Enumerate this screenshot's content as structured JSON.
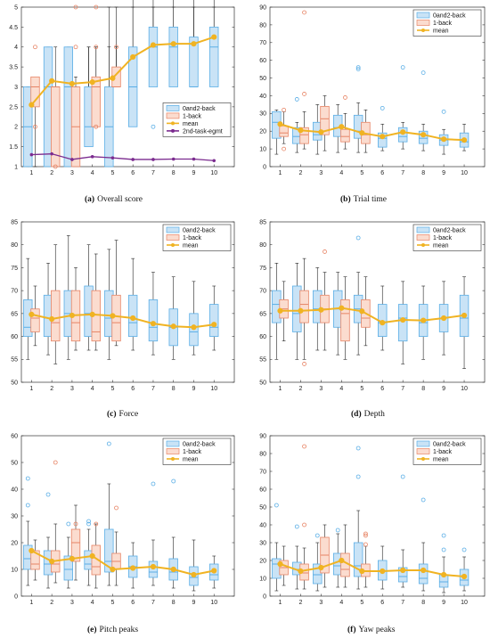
{
  "colors": {
    "box0": "#c9e3f6",
    "box0_edge": "#5aaee6",
    "box1": "#fbdccf",
    "box1_edge": "#e78465",
    "mean": "#f0b322",
    "second": "#7b2b8f",
    "whisker": "#222222"
  },
  "legend_entries": {
    "box0": "0and2-back",
    "box1": "1-back",
    "mean": "mean",
    "second": "2nd-task-egmt"
  },
  "chart_data": [
    {
      "type": "box",
      "caption_tag": "(a)",
      "caption_text": "Overall score",
      "ylim": [
        1,
        5
      ],
      "yticks": [
        "1",
        "1.5",
        "2",
        "2.5",
        "3",
        "3.5",
        "4",
        "4.5",
        "5"
      ],
      "categories": [
        "1",
        "2",
        "3",
        "4",
        "5",
        "6",
        "7",
        "8",
        "9",
        "10"
      ],
      "legend_position": "center-right",
      "boxes0": [
        [
          1,
          1,
          2,
          3,
          3
        ],
        [
          2,
          1,
          3,
          4,
          4
        ],
        [
          3,
          1,
          3,
          4,
          4
        ],
        [
          4,
          1.5,
          2,
          3,
          4
        ],
        [
          5,
          1,
          2,
          3,
          4
        ],
        [
          6,
          2,
          3,
          4,
          5
        ],
        [
          7,
          3,
          4,
          4.5,
          5
        ],
        [
          8,
          3,
          4,
          4.5,
          5
        ],
        [
          9,
          3,
          3,
          4.25,
          5
        ],
        [
          10,
          3,
          4,
          4.5,
          5
        ]
      ],
      "boxes1": [
        [
          1,
          2.5,
          3,
          3.25,
          3.25
        ],
        [
          2,
          1,
          3,
          3,
          4
        ],
        [
          3,
          1,
          2,
          3,
          3.25
        ],
        [
          4,
          2,
          3,
          3.25,
          4
        ],
        [
          5,
          3,
          3,
          3.5,
          4
        ]
      ],
      "outliers0": [
        [
          7,
          2
        ]
      ],
      "outliers1": [
        [
          1,
          4
        ],
        [
          1,
          2
        ],
        [
          2,
          1
        ],
        [
          3,
          5
        ],
        [
          3,
          4
        ],
        [
          4,
          5
        ],
        [
          4,
          4
        ],
        [
          4,
          2
        ],
        [
          5,
          4
        ]
      ],
      "mean": [
        2.55,
        3.15,
        3.08,
        3.12,
        3.22,
        3.75,
        4.05,
        4.08,
        4.08,
        4.25
      ],
      "second": [
        1.3,
        1.32,
        1.18,
        1.25,
        1.22,
        1.18,
        1.18,
        1.19,
        1.19,
        1.15
      ]
    },
    {
      "type": "box",
      "caption_tag": "(b)",
      "caption_text": "Trial time",
      "ylim": [
        0,
        90
      ],
      "yticks": [
        "0",
        "10",
        "20",
        "30",
        "40",
        "50",
        "60",
        "70",
        "80",
        "90"
      ],
      "categories": [
        "1",
        "2",
        "3",
        "4",
        "5",
        "6",
        "7",
        "8",
        "9",
        "10"
      ],
      "legend_position": "top-right",
      "boxes0": [
        [
          7,
          16,
          25,
          31,
          32
        ],
        [
          8,
          13,
          17,
          22,
          25
        ],
        [
          7,
          15,
          18,
          25,
          35
        ],
        [
          8,
          17,
          22,
          29,
          35
        ],
        [
          8,
          16,
          20,
          29,
          36
        ],
        [
          9,
          11,
          16,
          19,
          24
        ],
        [
          10,
          14,
          17,
          22,
          25
        ],
        [
          9,
          13,
          16,
          20,
          24
        ],
        [
          7,
          12,
          15,
          18,
          21
        ],
        [
          9,
          11,
          14,
          19,
          24
        ]
      ],
      "boxes1": [
        [
          13,
          17,
          19,
          23,
          31
        ],
        [
          10,
          13,
          18,
          22,
          31
        ],
        [
          9,
          18,
          27,
          34,
          40
        ],
        [
          10,
          14,
          17,
          21,
          30
        ],
        [
          8,
          13,
          18,
          25,
          32
        ]
      ],
      "outliers0": [
        [
          2,
          38
        ],
        [
          5,
          56
        ],
        [
          5,
          55
        ],
        [
          6,
          33
        ],
        [
          7,
          56
        ],
        [
          8,
          53
        ],
        [
          9,
          31
        ]
      ],
      "outliers1": [
        [
          1,
          32
        ],
        [
          1,
          10
        ],
        [
          2,
          87
        ],
        [
          2,
          41
        ],
        [
          4,
          39
        ]
      ],
      "mean": [
        24,
        20.5,
        19.5,
        22.5,
        19,
        17,
        19.5,
        18,
        15.5,
        15
      ]
    },
    {
      "type": "box",
      "caption_tag": "(c)",
      "caption_text": "Force",
      "ylim": [
        50,
        85
      ],
      "yticks": [
        "50",
        "55",
        "60",
        "65",
        "70",
        "75",
        "80",
        "85"
      ],
      "categories": [
        "1",
        "2",
        "3",
        "4",
        "5",
        "6",
        "7",
        "8",
        "9",
        "10"
      ],
      "legend_position": "top-right",
      "boxes0": [
        [
          55,
          60,
          62,
          68,
          77
        ],
        [
          56,
          60,
          64,
          69,
          76
        ],
        [
          55,
          60,
          65,
          70,
          82
        ],
        [
          57,
          60,
          65,
          71,
          80
        ],
        [
          55,
          60,
          64,
          70,
          79
        ],
        [
          57,
          60,
          63,
          69,
          77
        ],
        [
          56,
          59,
          62,
          68,
          74
        ],
        [
          55,
          58,
          62,
          66,
          73
        ],
        [
          56,
          58,
          61,
          65,
          72
        ],
        [
          57,
          60,
          62,
          67,
          71
        ]
      ],
      "boxes1": [
        [
          58,
          61,
          64,
          66,
          71
        ],
        [
          54,
          59,
          63,
          70,
          80
        ],
        [
          57,
          59,
          63,
          70,
          75
        ],
        [
          57,
          59,
          61,
          70,
          78
        ],
        [
          58,
          59,
          63,
          69,
          81
        ]
      ],
      "outliers0": [],
      "outliers1": [],
      "mean": [
        64.8,
        63.8,
        64.6,
        64.8,
        64.5,
        64,
        62.8,
        62.2,
        62,
        62.6
      ]
    },
    {
      "type": "box",
      "caption_tag": "(d)",
      "caption_text": "Depth",
      "ylim": [
        50,
        85
      ],
      "yticks": [
        "50",
        "55",
        "60",
        "65",
        "70",
        "75",
        "80",
        "85"
      ],
      "categories": [
        "1",
        "2",
        "3",
        "4",
        "5",
        "6",
        "7",
        "8",
        "9",
        "10"
      ],
      "legend_position": "top-right",
      "boxes0": [
        [
          55,
          63,
          67,
          70,
          76
        ],
        [
          55,
          61,
          65,
          71,
          76
        ],
        [
          57,
          63,
          66,
          70,
          75
        ],
        [
          56,
          62,
          66,
          70,
          74
        ],
        [
          56,
          63,
          66,
          69,
          74
        ],
        [
          57,
          60,
          63,
          67,
          71
        ],
        [
          54,
          59,
          64,
          67,
          72
        ],
        [
          55,
          60,
          63,
          67,
          71
        ],
        [
          56,
          61,
          64,
          67,
          72
        ],
        [
          53,
          60,
          64,
          69,
          73
        ]
      ],
      "boxes1": [
        [
          59,
          64,
          66,
          68,
          72
        ],
        [
          55,
          63,
          67,
          70,
          77
        ],
        [
          57,
          63,
          66,
          69,
          74
        ],
        [
          55,
          59,
          65,
          68,
          73
        ],
        [
          58,
          62,
          64,
          68,
          73
        ]
      ],
      "outliers0": [
        [
          5,
          81.5
        ]
      ],
      "outliers1": [
        [
          2,
          54
        ],
        [
          3,
          78.5
        ]
      ],
      "mean": [
        65.6,
        65.6,
        65.8,
        66.2,
        65.5,
        63,
        63.6,
        63.5,
        64,
        64.6
      ]
    },
    {
      "type": "box",
      "caption_tag": "(e)",
      "caption_text": "Pitch peaks",
      "ylim": [
        0,
        60
      ],
      "yticks": [
        "0",
        "10",
        "20",
        "30",
        "40",
        "50",
        "60"
      ],
      "categories": [
        "1",
        "2",
        "3",
        "4",
        "5",
        "6",
        "7",
        "8",
        "9",
        "10"
      ],
      "legend_position": "top-right",
      "boxes0": [
        [
          4,
          10,
          14,
          19,
          28
        ],
        [
          3,
          8,
          12,
          17,
          22
        ],
        [
          3,
          6,
          10,
          15,
          22
        ],
        [
          4,
          10,
          12,
          17,
          25
        ],
        [
          4,
          9,
          13,
          25,
          42
        ],
        [
          3,
          7,
          11,
          15,
          20
        ],
        [
          4,
          7,
          9,
          13,
          21
        ],
        [
          3,
          6,
          9,
          14,
          22
        ],
        [
          2,
          4,
          7,
          11,
          21
        ],
        [
          3,
          6,
          8,
          12,
          15
        ]
      ],
      "boxes1": [
        [
          6,
          10,
          12,
          17,
          21
        ],
        [
          5,
          9,
          12,
          17,
          27
        ],
        [
          6,
          13,
          20,
          25,
          34
        ],
        [
          3,
          8,
          11,
          19,
          27
        ],
        [
          4,
          10,
          13,
          16,
          24
        ]
      ],
      "outliers0": [
        [
          1,
          44
        ],
        [
          1,
          34
        ],
        [
          2,
          38
        ],
        [
          3,
          27
        ],
        [
          4,
          28
        ],
        [
          4,
          27
        ],
        [
          5,
          57
        ],
        [
          7,
          42
        ],
        [
          8,
          43
        ]
      ],
      "outliers1": [
        [
          2,
          50
        ],
        [
          3,
          27
        ],
        [
          4,
          27
        ],
        [
          5,
          33
        ]
      ],
      "mean": [
        17,
        13,
        14,
        15,
        10,
        10.5,
        11,
        10,
        8,
        9.5
      ]
    },
    {
      "type": "box",
      "caption_tag": "(f)",
      "caption_text": "Yaw peaks",
      "ylim": [
        0,
        90
      ],
      "yticks": [
        "0",
        "10",
        "20",
        "30",
        "40",
        "50",
        "60",
        "70",
        "80",
        "90"
      ],
      "categories": [
        "1",
        "2",
        "3",
        "4",
        "5",
        "6",
        "7",
        "8",
        "9",
        "10"
      ],
      "legend_position": "top-right",
      "boxes0": [
        [
          3,
          10,
          18,
          21,
          30
        ],
        [
          4,
          12,
          15,
          19,
          28
        ],
        [
          3,
          7,
          12,
          18,
          30
        ],
        [
          5,
          12,
          17,
          24,
          35
        ],
        [
          4,
          11,
          17,
          30,
          48
        ],
        [
          4,
          9,
          14,
          20,
          28
        ],
        [
          5,
          8,
          11,
          16,
          26
        ],
        [
          3,
          7,
          10,
          18,
          30
        ],
        [
          2,
          5,
          8,
          12,
          22
        ],
        [
          3,
          6,
          9,
          15,
          22
        ]
      ],
      "boxes1": [
        [
          6,
          12,
          16,
          20,
          28
        ],
        [
          4,
          9,
          13,
          18,
          27
        ],
        [
          5,
          13,
          23,
          33,
          40
        ],
        [
          5,
          11,
          15,
          24,
          40
        ],
        [
          5,
          11,
          14,
          18,
          28
        ]
      ],
      "outliers0": [
        [
          1,
          51
        ],
        [
          2,
          39
        ],
        [
          3,
          34
        ],
        [
          4,
          37
        ],
        [
          5,
          83
        ],
        [
          5,
          67
        ],
        [
          7,
          67
        ],
        [
          8,
          54
        ],
        [
          9,
          34
        ],
        [
          9,
          26
        ],
        [
          10,
          26
        ]
      ],
      "outliers1": [
        [
          2,
          84
        ],
        [
          2,
          40
        ],
        [
          5,
          35
        ],
        [
          5,
          34
        ],
        [
          5,
          29
        ]
      ],
      "mean": [
        18,
        14,
        16,
        20,
        14,
        14,
        14.5,
        14.5,
        12,
        11
      ]
    }
  ]
}
